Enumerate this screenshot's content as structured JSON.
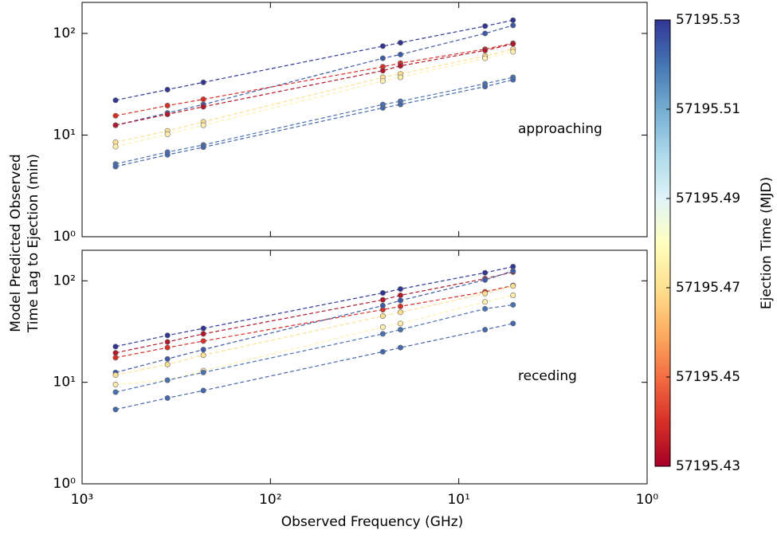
{
  "figure": {
    "xlabel": "Observed Frequency (GHz)",
    "ylabel": [
      "Model Predicted Observed",
      "Time Lag to Ejection (min)"
    ],
    "colorbar": {
      "label": "Ejection Time (MJD)",
      "lim": [
        57195.43,
        57195.53
      ],
      "ticks": [
        57195.43,
        57195.45,
        57195.47,
        57195.49,
        57195.51,
        57195.53
      ],
      "colormap": [
        "#a50026",
        "#d73027",
        "#f46d43",
        "#fdae61",
        "#fee090",
        "#ffffbf",
        "#e0f3f8",
        "#abd9e9",
        "#74add1",
        "#4575b4",
        "#313695"
      ]
    }
  },
  "chart_data": [
    {
      "type": "line",
      "annotation": "approaching",
      "xscale": "log",
      "yscale": "log",
      "linestyle": "dashed",
      "x": [
        664,
        352,
        227,
        25.3,
        20.4,
        7.25,
        5.15
      ],
      "xlim": [
        1000,
        1
      ],
      "ylim": [
        1,
        202
      ],
      "xticks": [
        {
          "value": 1000,
          "label": "10³"
        },
        {
          "value": 100,
          "label": "10²"
        },
        {
          "value": 10,
          "label": "10¹"
        },
        {
          "value": 1,
          "label": "10⁰"
        }
      ],
      "yticks": [
        {
          "value": 1,
          "label": "10⁰"
        },
        {
          "value": 10,
          "label": "10¹"
        },
        {
          "value": 100,
          "label": "10²"
        }
      ],
      "series": [
        {
          "color": "#313695",
          "values": [
            22,
            28,
            33,
            75,
            81,
            118,
            135
          ]
        },
        {
          "color": "#3f5aa6",
          "values": [
            12.5,
            16.5,
            20,
            57,
            62,
            100,
            120
          ]
        },
        {
          "color": "#d73027",
          "values": [
            15.5,
            19.5,
            22.5,
            47,
            51,
            70,
            80
          ]
        },
        {
          "color": "#b2182b",
          "values": [
            12.5,
            16,
            19,
            43,
            48,
            68,
            79
          ]
        },
        {
          "color": "#fee090",
          "values": [
            8.5,
            11,
            13.5,
            37,
            40,
            60,
            70
          ]
        },
        {
          "color": "#fff0b0",
          "values": [
            7.7,
            10.2,
            12.5,
            34,
            37,
            57,
            66
          ]
        },
        {
          "color": "#4a72b0",
          "values": [
            5.2,
            6.8,
            8,
            20,
            21.5,
            32,
            37
          ]
        },
        {
          "color": "#4468ab",
          "values": [
            4.9,
            6.4,
            7.6,
            18.5,
            20,
            30,
            35
          ]
        }
      ]
    },
    {
      "type": "line",
      "annotation": "receding",
      "xscale": "log",
      "yscale": "log",
      "linestyle": "dashed",
      "x": [
        664,
        352,
        227,
        25.3,
        20.4,
        7.25,
        5.15
      ],
      "xlim": [
        1000,
        1
      ],
      "ylim": [
        1,
        200
      ],
      "xticks": [
        {
          "value": 1000,
          "label": "10³"
        },
        {
          "value": 100,
          "label": "10²"
        },
        {
          "value": 10,
          "label": "10¹"
        },
        {
          "value": 1,
          "label": "10⁰"
        }
      ],
      "yticks": [
        {
          "value": 1,
          "label": "10⁰"
        },
        {
          "value": 10,
          "label": "10¹"
        },
        {
          "value": 100,
          "label": "10²"
        }
      ],
      "series": [
        {
          "color": "#313695",
          "values": [
            22.5,
            29,
            34,
            76,
            83,
            120,
            138
          ]
        },
        {
          "color": "#b2182b",
          "values": [
            19.5,
            25,
            30,
            65,
            72,
            105,
            122
          ]
        },
        {
          "color": "#d73027",
          "values": [
            17.5,
            22,
            25.5,
            52,
            56,
            78,
            90
          ]
        },
        {
          "color": "#3f5aa6",
          "values": [
            12.5,
            17,
            21,
            57,
            64,
            102,
            125
          ]
        },
        {
          "color": "#fee090",
          "values": [
            11.8,
            15,
            18.5,
            45,
            49,
            75,
            89
          ]
        },
        {
          "color": "#fff0b0",
          "values": [
            9.5,
            10.5,
            13,
            35,
            38,
            62,
            72
          ]
        },
        {
          "color": "#4a72b0",
          "values": [
            8,
            10.5,
            12.5,
            30,
            33,
            53,
            58
          ]
        },
        {
          "color": "#4468ab",
          "values": [
            5.4,
            7,
            8.3,
            20,
            22,
            33,
            38
          ]
        }
      ]
    }
  ]
}
